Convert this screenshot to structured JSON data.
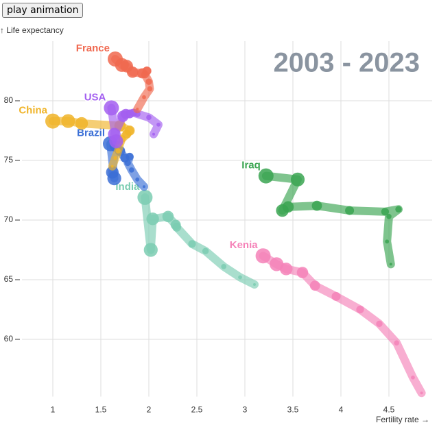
{
  "button": "play animation",
  "chart_data": {
    "type": "trajectory",
    "title": "2003 - 2023",
    "x_label": "Fertility rate →",
    "y_label": "↑ Life expectancy",
    "xlim": [
      0.45,
      4.95
    ],
    "ylim": [
      55.2,
      85
    ],
    "xticks": [
      1,
      1.5,
      2,
      2.5,
      3,
      3.5,
      4,
      4.5
    ],
    "yticks": [
      60,
      65,
      70,
      75,
      80
    ],
    "grid": true,
    "series": [
      {
        "name": "Kenia",
        "color": "#f582b8",
        "x": [
          4.84,
          4.75,
          4.58,
          4.4,
          4.2,
          3.95,
          3.73,
          3.6,
          3.43,
          3.33,
          3.19
        ],
        "values": [
          55.5,
          56.8,
          59.7,
          61.3,
          62.5,
          63.6,
          64.5,
          65.6,
          65.9,
          66.3,
          67.0
        ]
      },
      {
        "name": "Iraq",
        "color": "#3aa551",
        "x": [
          4.52,
          4.48,
          4.5,
          4.6,
          4.46,
          4.09,
          3.75,
          3.45,
          3.39,
          3.55,
          3.22
        ],
        "values": [
          66.3,
          68.2,
          70.3,
          70.9,
          70.7,
          70.8,
          71.2,
          71.1,
          70.8,
          73.4,
          73.7
        ]
      },
      {
        "name": "India",
        "color": "#7bcdb2",
        "x": [
          3.1,
          2.95,
          2.78,
          2.59,
          2.45,
          2.29,
          2.28,
          2.2,
          2.04,
          2.02,
          1.96
        ],
        "values": [
          64.6,
          65.2,
          66.1,
          67.4,
          68.0,
          69.4,
          69.6,
          70.3,
          70.1,
          67.5,
          71.9
        ]
      },
      {
        "name": "Brazil",
        "color": "#3b6fd6",
        "x": [
          1.95,
          1.88,
          1.82,
          1.78,
          1.8,
          1.75,
          1.7,
          1.65,
          1.62,
          1.64,
          1.6
        ],
        "values": [
          72.8,
          73.4,
          74.2,
          74.8,
          75.3,
          75.2,
          75.8,
          76.2,
          74.0,
          73.5,
          76.4
        ]
      },
      {
        "name": "China",
        "color": "#f0b429",
        "x": [
          1.62,
          1.65,
          1.68,
          1.7,
          1.72,
          1.77,
          1.8,
          1.7,
          1.3,
          1.16,
          1.0
        ],
        "values": [
          74.5,
          75.2,
          75.8,
          76.4,
          76.8,
          77.2,
          77.5,
          77.9,
          78.1,
          78.3,
          78.3
        ]
      },
      {
        "name": "USA",
        "color": "#a35ff0",
        "x": [
          2.05,
          2.1,
          2.0,
          1.88,
          1.84,
          1.8,
          1.76,
          1.73,
          1.64,
          1.66,
          1.61
        ],
        "values": [
          77.2,
          78.0,
          78.6,
          78.9,
          79.0,
          78.9,
          78.9,
          78.7,
          77.2,
          76.6,
          79.4
        ]
      },
      {
        "name": "France",
        "color": "#f0684f",
        "x": [
          1.88,
          1.95,
          2.01,
          2.0,
          1.96,
          1.98,
          1.93,
          1.83,
          1.77,
          1.72,
          1.65
        ],
        "values": [
          79.3,
          80.3,
          81.0,
          81.6,
          82.2,
          82.5,
          82.3,
          82.4,
          82.9,
          83.0,
          83.5
        ]
      }
    ]
  }
}
